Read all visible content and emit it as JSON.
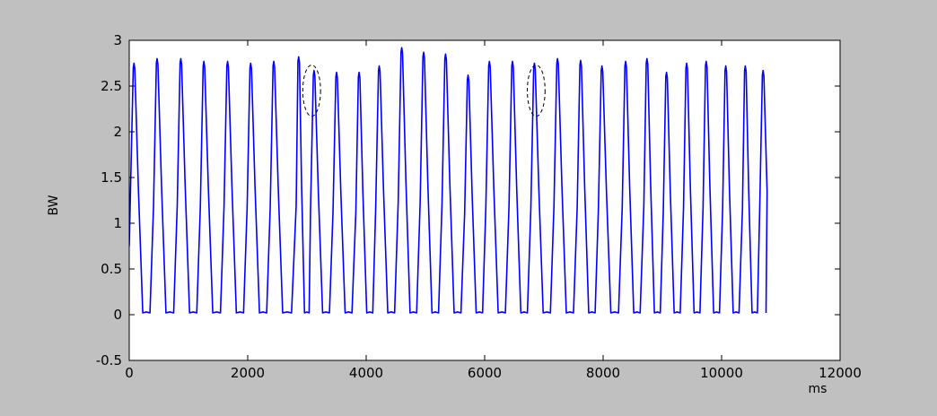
{
  "window": {
    "background_color": "#c0c0c0",
    "axes_background_color": "#ffffff"
  },
  "chart_data": {
    "type": "line",
    "title": "",
    "xlabel": "ms",
    "ylabel": "BW",
    "xlim": [
      0,
      12000
    ],
    "ylim": [
      -0.5,
      3
    ],
    "x_ticks": [
      0,
      2000,
      4000,
      6000,
      8000,
      10000,
      12000
    ],
    "x_tick_labels": [
      "0",
      "2000",
      "4000",
      "6000",
      "8000",
      "10000",
      "12000"
    ],
    "y_ticks": [
      -0.5,
      0,
      0.5,
      1,
      1.5,
      2,
      2.5,
      3
    ],
    "y_tick_labels": [
      "-0.5",
      "0",
      "0.5",
      "1",
      "1.5",
      "2",
      "2.5",
      "3"
    ],
    "grid": false,
    "legend": "none",
    "series": [
      {
        "color": "#0000ff",
        "start": {
          "x": 0,
          "y": 0.75
        },
        "baseline": 0.02,
        "end_x": 10750,
        "peaks": [
          {
            "x": 80,
            "y": 2.75
          },
          {
            "x": 470,
            "y": 2.8
          },
          {
            "x": 870,
            "y": 2.8
          },
          {
            "x": 1260,
            "y": 2.77
          },
          {
            "x": 1660,
            "y": 2.77
          },
          {
            "x": 2050,
            "y": 2.75
          },
          {
            "x": 2440,
            "y": 2.77
          },
          {
            "x": 2860,
            "y": 2.82
          },
          {
            "x": 3120,
            "y": 2.67
          },
          {
            "x": 3500,
            "y": 2.65
          },
          {
            "x": 3880,
            "y": 2.65
          },
          {
            "x": 4220,
            "y": 2.72
          },
          {
            "x": 4600,
            "y": 2.92
          },
          {
            "x": 4970,
            "y": 2.87
          },
          {
            "x": 5340,
            "y": 2.85
          },
          {
            "x": 5720,
            "y": 2.62
          },
          {
            "x": 6080,
            "y": 2.77
          },
          {
            "x": 6470,
            "y": 2.77
          },
          {
            "x": 6840,
            "y": 2.75
          },
          {
            "x": 7230,
            "y": 2.8
          },
          {
            "x": 7620,
            "y": 2.78
          },
          {
            "x": 7980,
            "y": 2.72
          },
          {
            "x": 8380,
            "y": 2.77
          },
          {
            "x": 8740,
            "y": 2.8
          },
          {
            "x": 9070,
            "y": 2.65
          },
          {
            "x": 9410,
            "y": 2.75
          },
          {
            "x": 9740,
            "y": 2.77
          },
          {
            "x": 10070,
            "y": 2.72
          },
          {
            "x": 10400,
            "y": 2.72
          },
          {
            "x": 10700,
            "y": 2.67
          }
        ]
      }
    ],
    "annotations": [
      {
        "type": "dashed-ellipse",
        "cx": 3080,
        "cy": 2.45,
        "rx": 150,
        "ry": 0.28
      },
      {
        "type": "dashed-ellipse",
        "cx": 6870,
        "cy": 2.45,
        "rx": 150,
        "ry": 0.28
      }
    ]
  }
}
